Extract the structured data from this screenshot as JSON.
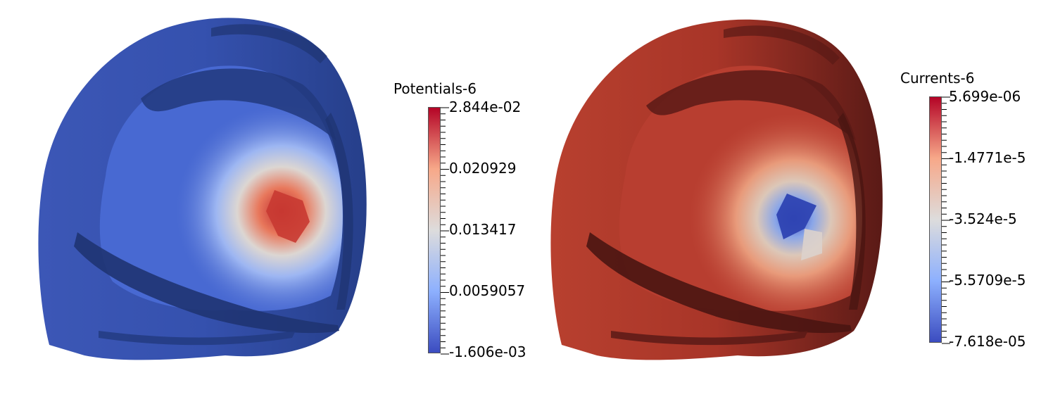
{
  "left": {
    "colorbar_title": "Potentials-6",
    "labels": [
      "2.844e-02",
      "0.020929",
      "0.013417",
      "0.0059057",
      "-1.606e-03"
    ],
    "colormap": [
      "#b40426",
      "#f7a889",
      "#dddcdc",
      "#8db0fe",
      "#3b4cc0"
    ]
  },
  "right": {
    "colorbar_title": "Currents-6",
    "labels": [
      "5.699e-06",
      "-1.4771e-5",
      "-3.524e-5",
      "-5.5709e-5",
      "-7.618e-05"
    ],
    "colormap": [
      "#b40426",
      "#f7a889",
      "#dddcdc",
      "#8db0fe",
      "#3b4cc0"
    ]
  }
}
